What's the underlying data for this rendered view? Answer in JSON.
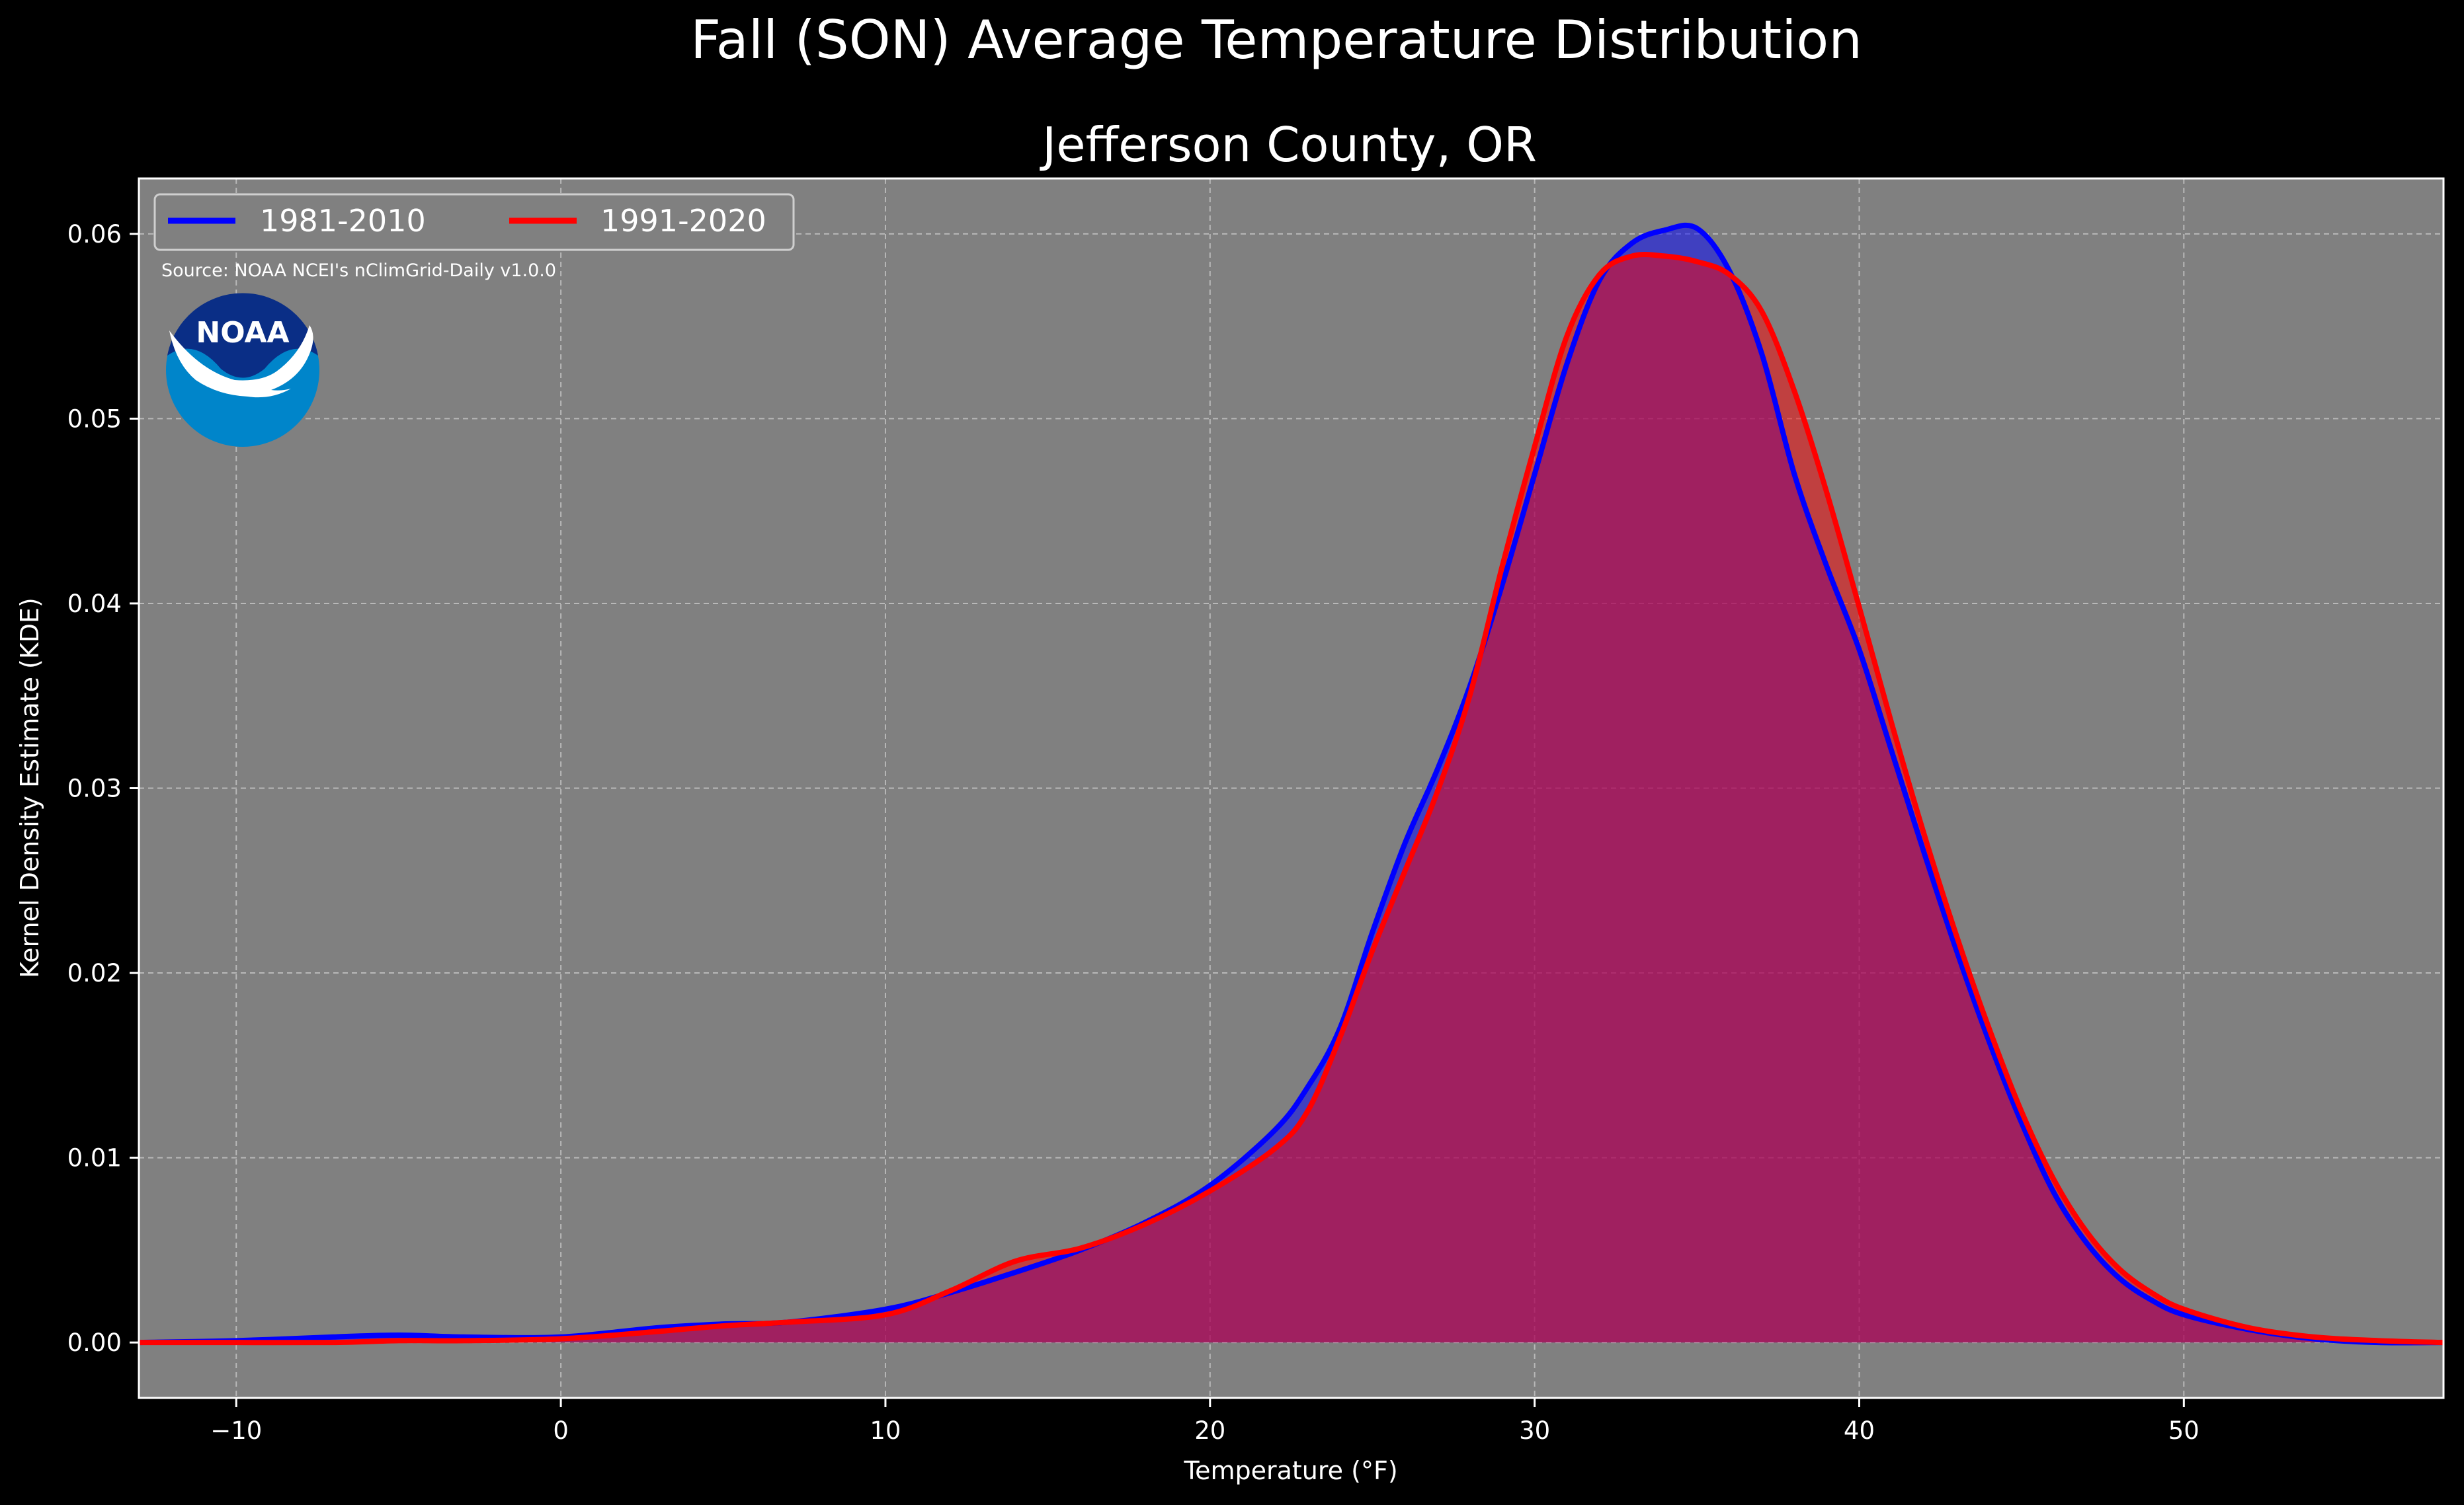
{
  "suptitle": "Fall (SON) Average Temperature Distribution",
  "source_note": "Source: NOAA NCEI's nClimGrid-Daily v1.0.0",
  "logo": {
    "text": "NOAA",
    "icon": "noaa-logo"
  },
  "colors": {
    "background": "#000000",
    "plot_bg": "#808080",
    "series1": "#0000ff",
    "series2": "#ff0000",
    "text": "#ffffff",
    "logo_dark": "#0a2e86",
    "logo_light": "#0085ca"
  },
  "chart_data": {
    "type": "area",
    "title": "Jefferson County, OR",
    "xlabel": "Temperature (°F)",
    "ylabel": "Kernel Density Estimate (KDE)",
    "xlim": [
      -13,
      58
    ],
    "ylim": [
      -0.003,
      0.063
    ],
    "xticks": [
      -10,
      0,
      10,
      20,
      30,
      40,
      50
    ],
    "xtick_labels": [
      "−10",
      "0",
      "10",
      "20",
      "30",
      "40",
      "50"
    ],
    "yticks": [
      0.0,
      0.01,
      0.02,
      0.03,
      0.04,
      0.05,
      0.06
    ],
    "ytick_labels": [
      "0.00",
      "0.01",
      "0.02",
      "0.03",
      "0.04",
      "0.05",
      "0.06"
    ],
    "grid": true,
    "legend": {
      "placement": "top-left",
      "ncol": 2
    },
    "series": [
      {
        "name": "1981-2010",
        "x": [
          -13,
          -10,
          -7,
          -5,
          -3,
          0,
          3,
          5,
          7,
          10,
          12,
          14,
          16,
          18,
          20,
          22,
          23,
          24,
          25,
          26,
          27,
          28,
          29,
          30,
          31,
          32,
          33,
          34,
          35,
          36,
          37,
          38,
          39,
          40,
          41,
          42,
          43,
          44,
          45,
          46,
          47,
          48,
          49,
          50,
          52,
          54,
          56,
          58
        ],
        "y": [
          0.0,
          0.0001,
          0.0003,
          0.0004,
          0.0003,
          0.0003,
          0.0008,
          0.001,
          0.0011,
          0.0018,
          0.0027,
          0.0038,
          0.005,
          0.0065,
          0.0085,
          0.0115,
          0.0138,
          0.017,
          0.0222,
          0.027,
          0.031,
          0.0355,
          0.041,
          0.047,
          0.053,
          0.0575,
          0.0595,
          0.0602,
          0.0603,
          0.058,
          0.0535,
          0.047,
          0.042,
          0.0375,
          0.032,
          0.0265,
          0.0212,
          0.0163,
          0.0119,
          0.0081,
          0.0054,
          0.0035,
          0.0023,
          0.0015,
          0.0007,
          0.0002,
          0.0,
          0.0
        ]
      },
      {
        "name": "1991-2020",
        "x": [
          -13,
          -10,
          -7,
          -5,
          -3,
          0,
          3,
          5,
          7,
          10,
          12,
          14,
          16,
          18,
          20,
          22,
          23,
          24,
          25,
          26,
          27,
          28,
          29,
          30,
          31,
          32,
          33,
          34,
          35,
          36,
          37,
          38,
          39,
          40,
          41,
          42,
          43,
          44,
          45,
          46,
          47,
          48,
          49,
          50,
          52,
          54,
          56,
          58
        ],
        "y": [
          0.0,
          0.0,
          0.0,
          0.0001,
          0.0001,
          0.0002,
          0.0006,
          0.0009,
          0.0011,
          0.0015,
          0.0028,
          0.0044,
          0.0051,
          0.0064,
          0.0082,
          0.0105,
          0.0125,
          0.0165,
          0.0212,
          0.0255,
          0.0298,
          0.035,
          0.042,
          0.0485,
          0.0545,
          0.0578,
          0.0588,
          0.0588,
          0.0585,
          0.0578,
          0.0558,
          0.0515,
          0.046,
          0.0398,
          0.0335,
          0.0275,
          0.022,
          0.017,
          0.0125,
          0.0088,
          0.006,
          0.004,
          0.0027,
          0.0018,
          0.0008,
          0.0003,
          0.0001,
          0.0
        ]
      }
    ]
  }
}
